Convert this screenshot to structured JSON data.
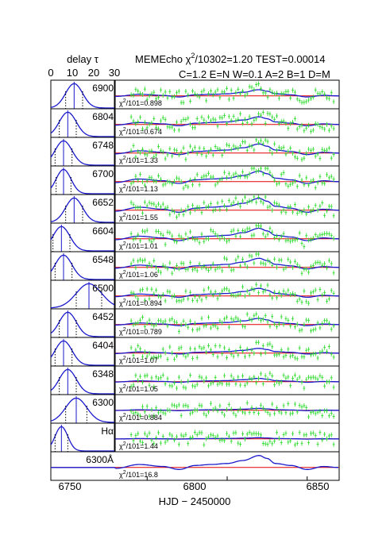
{
  "header": {
    "delay_label": "delay τ",
    "delay_ticks": [
      "0",
      "10",
      "20",
      "30"
    ],
    "title_pre": "MEMEcho χ",
    "title_sup": "2",
    "title_post": "/10302=1.20 TEST=0.00014",
    "params": "C=1.2 E=N W=0.1 A=2 B=1 D=M"
  },
  "xaxis": {
    "label": "HJD − 2450000",
    "ticks": [
      "6750",
      "6800",
      "6850"
    ]
  },
  "colors": {
    "data_points": "#33dd33",
    "model": "#1a1acc",
    "baseline": "#e00000",
    "frame": "#000000"
  },
  "chart_data": {
    "type": "line",
    "x_range": [
      6730,
      6870
    ],
    "delay_range": [
      0,
      30
    ],
    "panels": [
      {
        "label": "6900",
        "chi_pre": "χ",
        "chi_sup": "2",
        "chi_post": "/101=0.898",
        "tf_peak": 11,
        "tf_width": 4
      },
      {
        "label": "6804",
        "chi_pre": "χ",
        "chi_sup": "2",
        "chi_post": "/101=0.674",
        "tf_peak": 8,
        "tf_width": 4
      },
      {
        "label": "6748",
        "chi_pre": "χ",
        "chi_sup": "2",
        "chi_post": "/101=1.33",
        "tf_peak": 6,
        "tf_width": 4
      },
      {
        "label": "6700",
        "chi_pre": "χ",
        "chi_sup": "2",
        "chi_post": "/101=1.13",
        "tf_peak": 6,
        "tf_width": 3.5
      },
      {
        "label": "6652",
        "chi_pre": "χ",
        "chi_sup": "2",
        "chi_post": "/101=1.55",
        "tf_peak": 11,
        "tf_width": 4
      },
      {
        "label": "6604",
        "chi_pre": "χ",
        "chi_sup": "2",
        "chi_post": "/101=1.01",
        "tf_peak": 5,
        "tf_width": 4
      },
      {
        "label": "6548",
        "chi_pre": "χ",
        "chi_sup": "2",
        "chi_post": "/101=1.06",
        "tf_peak": 6,
        "tf_width": 4
      },
      {
        "label": "6500",
        "chi_pre": "χ",
        "chi_sup": "2",
        "chi_post": "/101=0.894",
        "tf_peak": 18,
        "tf_width": 6
      },
      {
        "label": "6452",
        "chi_pre": "χ",
        "chi_sup": "2",
        "chi_post": "/101=0.789",
        "tf_peak": 8,
        "tf_width": 4
      },
      {
        "label": "6404",
        "chi_pre": "χ",
        "chi_sup": "2",
        "chi_post": "/101=1.07",
        "tf_peak": 6,
        "tf_width": 4
      },
      {
        "label": "6348",
        "chi_pre": "χ",
        "chi_sup": "2",
        "chi_post": "/101=1.05",
        "tf_peak": 8,
        "tf_width": 4
      },
      {
        "label": "6300",
        "chi_pre": "χ",
        "chi_sup": "2",
        "chi_post": "/101=0.884",
        "tf_peak": 12,
        "tf_width": 5
      },
      {
        "label": "Hα",
        "chi_pre": "χ",
        "chi_sup": "2",
        "chi_post": "/101=1.44",
        "tf_peak": 5,
        "tf_width": 3
      },
      {
        "label": "6300Å",
        "chi_pre": "χ",
        "chi_sup": "2",
        "chi_post": "/101=16.8",
        "tf_peak": null,
        "tf_width": null
      }
    ],
    "light_curve": {
      "x": [
        6730,
        6745,
        6760,
        6770,
        6780,
        6790,
        6800,
        6810,
        6820,
        6825,
        6830,
        6840,
        6850,
        6860,
        6870
      ],
      "shape": [
        0.35,
        0.55,
        0.45,
        0.3,
        0.5,
        0.55,
        0.6,
        0.75,
        1.0,
        0.85,
        0.6,
        0.5,
        0.3,
        0.45,
        0.4
      ]
    }
  }
}
